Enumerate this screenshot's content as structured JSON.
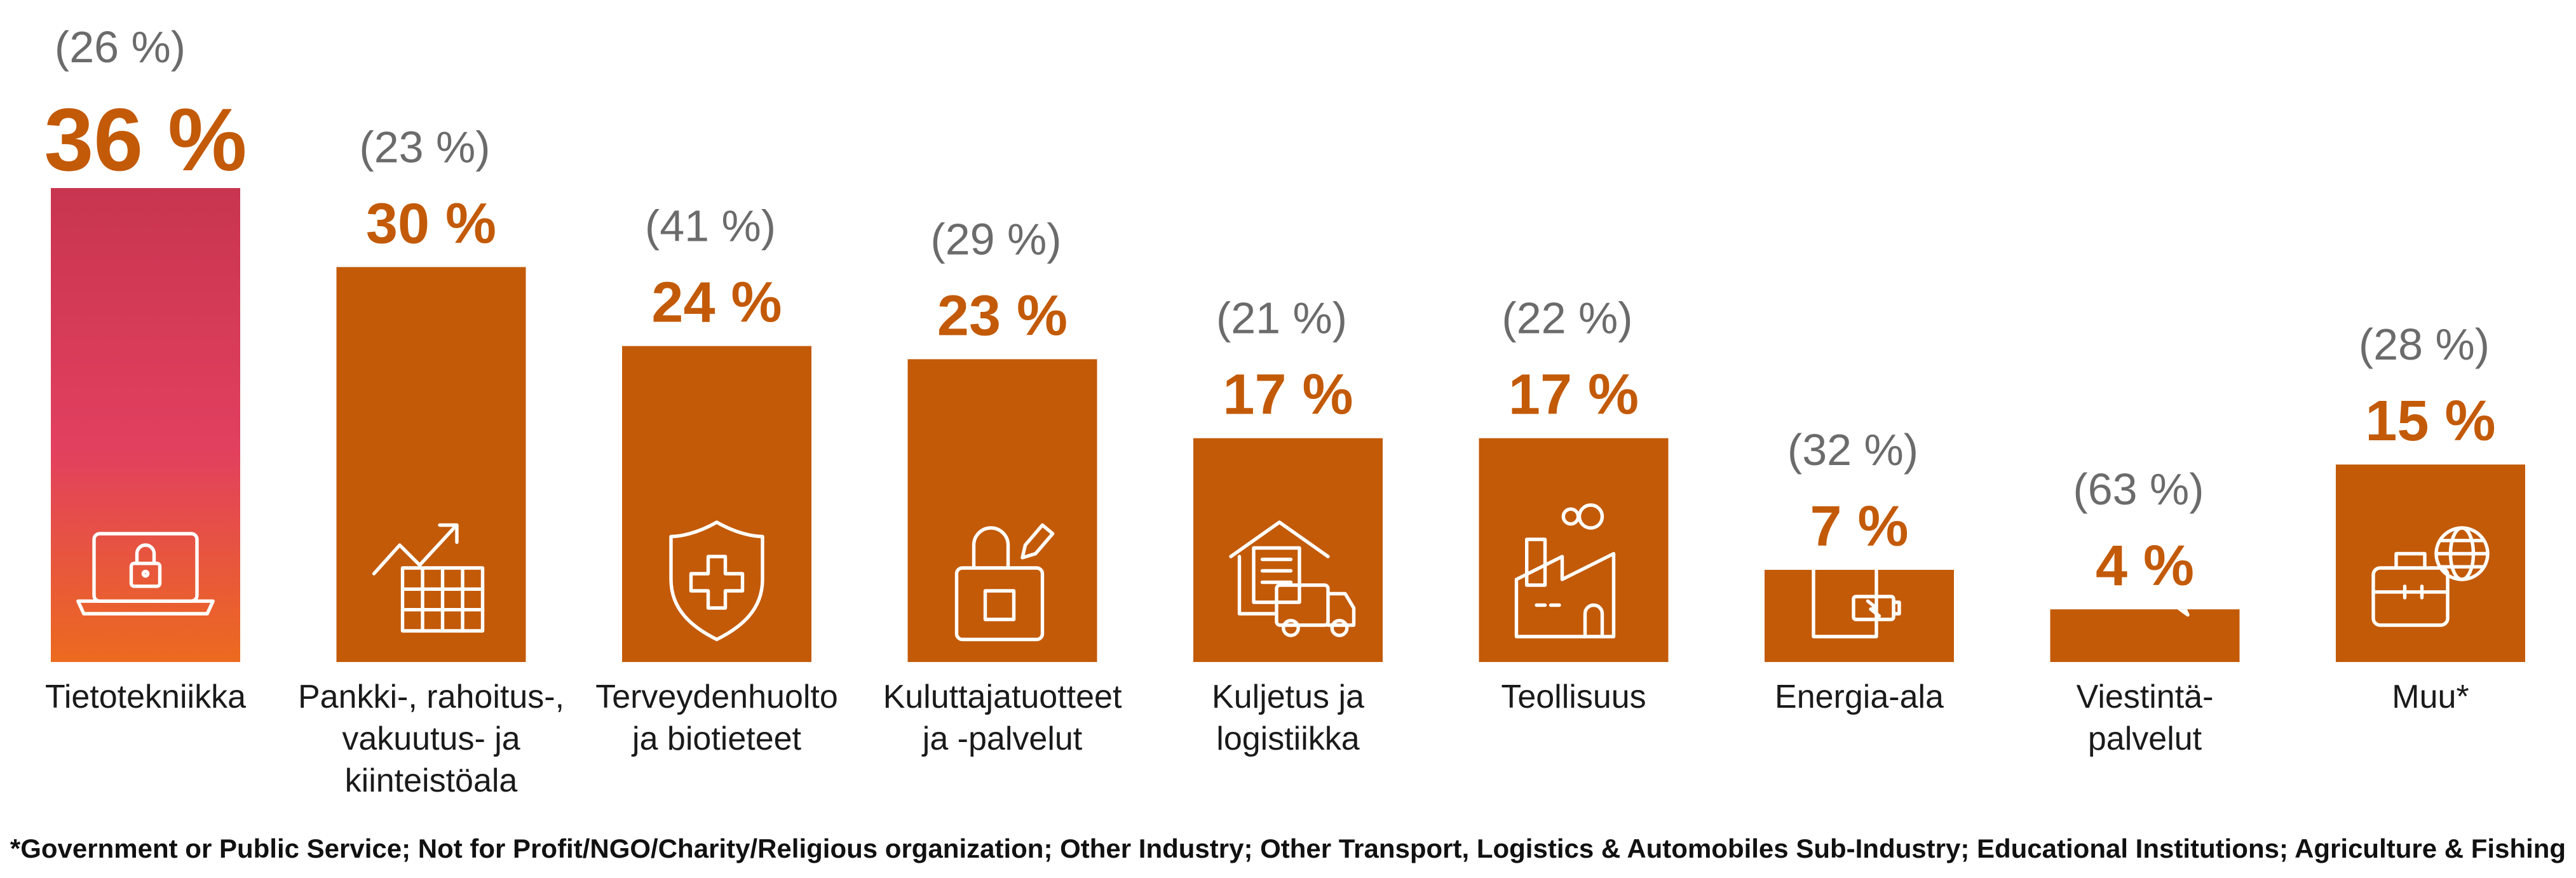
{
  "chart_data": {
    "type": "bar",
    "categories": [
      [
        "Tietotekniikka"
      ],
      [
        "Pankki-, rahoitus-,",
        "vakuutus- ja",
        "kiinteistöala"
      ],
      [
        "Terveydenhuolto",
        "ja biotieteet"
      ],
      [
        "Kuluttajatuotteet",
        "ja -palvelut"
      ],
      [
        "Kuljetus ja",
        "logistiikka"
      ],
      [
        "Teollisuus"
      ],
      [
        "Energia-ala"
      ],
      [
        "Viestintä-",
        "palvelut"
      ],
      [
        "Muu*"
      ]
    ],
    "values": [
      36,
      30,
      24,
      23,
      17,
      17,
      7,
      4,
      15
    ],
    "value_labels": [
      "36 %",
      "30 %",
      "24 %",
      "23 %",
      "17 %",
      "17 %",
      "7 %",
      "4 %",
      "15 %"
    ],
    "previous_labels": [
      "(26 %)",
      "(23 %)",
      "(41 %)",
      "(29 %)",
      "(21 %)",
      "(22 %)",
      "(32 %)",
      "(63 %)",
      "(28 %)"
    ],
    "icons": [
      "laptop-lock-icon",
      "growth-chart-icon",
      "medical-shield-icon",
      "shopping-bag-icon",
      "delivery-truck-icon",
      "factory-icon",
      "energy-battery-icon",
      "chat-bubbles-icon",
      "briefcase-globe-icon"
    ],
    "ylim": [
      0,
      36
    ],
    "highlight_gradient": [
      "#c8354f",
      "#e2405f",
      "#ec6a1f"
    ],
    "bar_color": "#c35a08",
    "value_color": "#c35a08",
    "previous_color": "#6b6b6b"
  },
  "footnote": "*Government or Public Service; Not for Profit/NGO/Charity/Religious organization; Other Industry; Other Transport, Logistics & Automobiles Sub-Industry; Educational Institutions; Agriculture & Fishing"
}
